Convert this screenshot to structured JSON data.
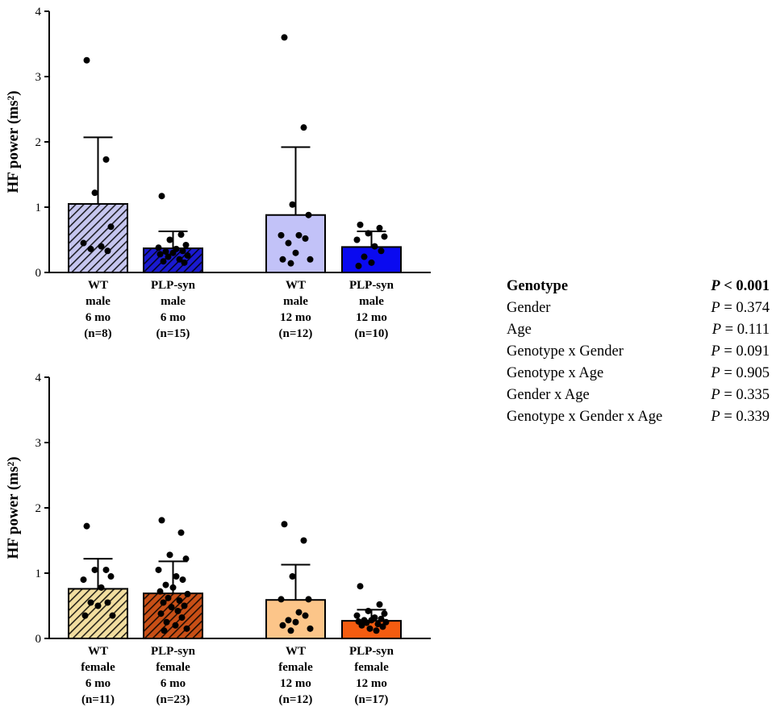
{
  "chart_data": [
    {
      "type": "bar",
      "panel": "male",
      "ylabel": "HF power (ms²)",
      "ylim": [
        0,
        4
      ],
      "yticks": [
        0,
        1,
        2,
        3,
        4
      ],
      "bars": [
        {
          "label_lines": [
            "WT",
            "male",
            "6 mo",
            "(n=8)"
          ],
          "mean": 1.05,
          "sd": 1.02,
          "color": "#c6c6ef",
          "hatch": true,
          "points": [
            3.25,
            1.73,
            1.22,
            0.7,
            0.45,
            0.4,
            0.33,
            0.36
          ]
        },
        {
          "label_lines": [
            "PLP-syn",
            "male",
            "6 mo",
            "(n=15)"
          ],
          "mean": 0.37,
          "sd": 0.26,
          "color": "#1a1ad0",
          "hatch": true,
          "points": [
            1.17,
            0.58,
            0.5,
            0.42,
            0.38,
            0.36,
            0.33,
            0.32,
            0.3,
            0.28,
            0.26,
            0.24,
            0.2,
            0.17,
            0.15
          ]
        },
        {
          "label_lines": [
            "WT",
            "male",
            "12 mo",
            "(n=12)"
          ],
          "mean": 0.88,
          "sd": 1.04,
          "color": "#c2c2f8",
          "hatch": false,
          "points": [
            3.6,
            2.22,
            1.04,
            0.88,
            0.57,
            0.57,
            0.52,
            0.45,
            0.3,
            0.2,
            0.2,
            0.14
          ]
        },
        {
          "label_lines": [
            "PLP-syn",
            "male",
            "12 mo",
            "(n=10)"
          ],
          "mean": 0.39,
          "sd": 0.24,
          "color": "#0a0af0",
          "hatch": false,
          "points": [
            0.73,
            0.68,
            0.6,
            0.55,
            0.5,
            0.4,
            0.33,
            0.24,
            0.15,
            0.1
          ]
        }
      ]
    },
    {
      "type": "bar",
      "panel": "female",
      "ylabel": "HF power (ms²)",
      "ylim": [
        0,
        4
      ],
      "yticks": [
        0,
        1,
        2,
        3,
        4
      ],
      "bars": [
        {
          "label_lines": [
            "WT",
            "female",
            "6 mo",
            "(n=11)"
          ],
          "mean": 0.76,
          "sd": 0.46,
          "color": "#f2dea0",
          "hatch": true,
          "points": [
            1.72,
            1.05,
            1.05,
            0.95,
            0.9,
            0.78,
            0.55,
            0.55,
            0.5,
            0.35,
            0.35
          ]
        },
        {
          "label_lines": [
            "PLP-syn",
            "female",
            "6 mo",
            "(n=23)"
          ],
          "mean": 0.69,
          "sd": 0.49,
          "color": "#c84f16",
          "hatch": true,
          "points": [
            1.81,
            1.62,
            1.28,
            1.22,
            1.05,
            0.95,
            0.9,
            0.82,
            0.78,
            0.72,
            0.68,
            0.62,
            0.58,
            0.55,
            0.5,
            0.48,
            0.42,
            0.38,
            0.32,
            0.25,
            0.2,
            0.15,
            0.12
          ]
        },
        {
          "label_lines": [
            "WT",
            "female",
            "12 mo",
            "(n=12)"
          ],
          "mean": 0.59,
          "sd": 0.54,
          "color": "#fcc589",
          "hatch": false,
          "points": [
            1.75,
            1.5,
            0.95,
            0.6,
            0.6,
            0.4,
            0.35,
            0.28,
            0.25,
            0.2,
            0.15,
            0.12
          ]
        },
        {
          "label_lines": [
            "PLP-syn",
            "female",
            "12 mo",
            "(n=17)"
          ],
          "mean": 0.27,
          "sd": 0.17,
          "color": "#f45c10",
          "hatch": false,
          "points": [
            0.8,
            0.52,
            0.42,
            0.38,
            0.35,
            0.32,
            0.3,
            0.28,
            0.28,
            0.26,
            0.25,
            0.24,
            0.22,
            0.2,
            0.18,
            0.15,
            0.12
          ]
        }
      ]
    }
  ],
  "stats_table": {
    "rows": [
      {
        "factor": "Genotype",
        "p_label": "P",
        "op": "<",
        "p_value": "0.001",
        "bold": true
      },
      {
        "factor": "Gender",
        "p_label": "P",
        "op": "=",
        "p_value": "0.374",
        "bold": false
      },
      {
        "factor": "Age",
        "p_label": "P",
        "op": "=",
        "p_value": "0.111",
        "bold": false
      },
      {
        "factor": "Genotype x Gender",
        "p_label": "P",
        "op": "=",
        "p_value": "0.091",
        "bold": false
      },
      {
        "factor": "Genotype x Age",
        "p_label": "P",
        "op": "=",
        "p_value": "0.905",
        "bold": false
      },
      {
        "factor": "Gender x Age",
        "p_label": "P",
        "op": "=",
        "p_value": "0.335",
        "bold": false
      },
      {
        "factor": "Genotype x Gender x Age",
        "p_label": "P",
        "op": "=",
        "p_value": "0.339",
        "bold": false
      }
    ]
  }
}
